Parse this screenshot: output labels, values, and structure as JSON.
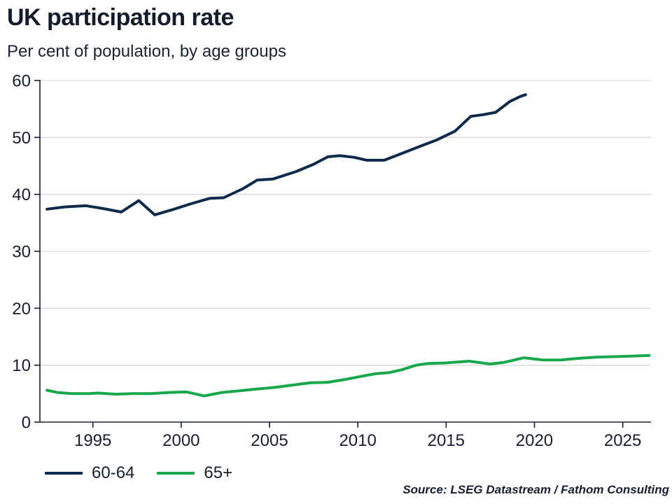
{
  "header": {
    "title": "UK participation rate",
    "subtitle": "Per cent of population, by age groups"
  },
  "source": "Source: LSEG Datastream / Fathom Consulting",
  "colors": {
    "navy": "#0e2b4d",
    "green": "#18a84c",
    "text": "#171e31",
    "gridline": "#d9d9d9"
  },
  "chart_data": {
    "type": "line",
    "title": "UK participation rate",
    "subtitle": "Per cent of population, by age groups",
    "xlabel": "",
    "ylabel": "Per cent of population",
    "xlim": [
      1992,
      2026.6
    ],
    "ylim": [
      0,
      60
    ],
    "xticks": [
      1995,
      2000,
      2005,
      2010,
      2015,
      2020,
      2025
    ],
    "yticks": [
      0,
      10,
      20,
      30,
      40,
      50,
      60
    ],
    "grid": "horizontal",
    "legend_position": "bottom-left",
    "series": [
      {
        "name": "60-64",
        "color": "#0e2b4d",
        "points": [
          [
            1992.4,
            37.4
          ],
          [
            1993.4,
            37.8
          ],
          [
            1994.6,
            38.0
          ],
          [
            1995.6,
            37.5
          ],
          [
            1996.6,
            36.9
          ],
          [
            1997.6,
            38.9
          ],
          [
            1998.5,
            36.4
          ],
          [
            1999.5,
            37.3
          ],
          [
            2000.5,
            38.3
          ],
          [
            2001.6,
            39.3
          ],
          [
            2002.4,
            39.4
          ],
          [
            2003.5,
            41.0
          ],
          [
            2004.3,
            42.5
          ],
          [
            2005.2,
            42.7
          ],
          [
            2006.5,
            44.0
          ],
          [
            2007.5,
            45.3
          ],
          [
            2008.3,
            46.6
          ],
          [
            2009.0,
            46.8
          ],
          [
            2009.8,
            46.5
          ],
          [
            2010.5,
            46.0
          ],
          [
            2011.5,
            46.0
          ],
          [
            2012.5,
            47.2
          ],
          [
            2013.5,
            48.4
          ],
          [
            2014.5,
            49.6
          ],
          [
            2015.5,
            51.1
          ],
          [
            2016.4,
            53.7
          ],
          [
            2017.1,
            54.0
          ],
          [
            2017.8,
            54.4
          ],
          [
            2018.6,
            56.3
          ],
          [
            2019.2,
            57.2
          ],
          [
            2019.5,
            57.5
          ]
        ]
      },
      {
        "name": "65+",
        "color": "#18a84c",
        "points": [
          [
            1992.4,
            5.6
          ],
          [
            1993.0,
            5.2
          ],
          [
            1993.8,
            5.0
          ],
          [
            1994.8,
            5.0
          ],
          [
            1995.3,
            5.1
          ],
          [
            1996.3,
            4.9
          ],
          [
            1997.3,
            5.0
          ],
          [
            1998.3,
            5.0
          ],
          [
            1999.3,
            5.2
          ],
          [
            2000.3,
            5.3
          ],
          [
            2001.3,
            4.6
          ],
          [
            2002.3,
            5.2
          ],
          [
            2003.3,
            5.5
          ],
          [
            2004.3,
            5.8
          ],
          [
            2005.3,
            6.1
          ],
          [
            2006.3,
            6.5
          ],
          [
            2007.3,
            6.9
          ],
          [
            2008.3,
            7.0
          ],
          [
            2009.3,
            7.5
          ],
          [
            2010.3,
            8.1
          ],
          [
            2011.0,
            8.5
          ],
          [
            2011.8,
            8.7
          ],
          [
            2012.5,
            9.2
          ],
          [
            2013.3,
            10.0
          ],
          [
            2014.0,
            10.3
          ],
          [
            2015.0,
            10.4
          ],
          [
            2016.3,
            10.7
          ],
          [
            2017.5,
            10.2
          ],
          [
            2018.3,
            10.5
          ],
          [
            2019.4,
            11.3
          ],
          [
            2020.5,
            10.9
          ],
          [
            2021.5,
            10.9
          ],
          [
            2022.5,
            11.2
          ],
          [
            2023.5,
            11.4
          ],
          [
            2024.5,
            11.5
          ],
          [
            2025.5,
            11.6
          ],
          [
            2026.5,
            11.7
          ]
        ]
      }
    ]
  }
}
